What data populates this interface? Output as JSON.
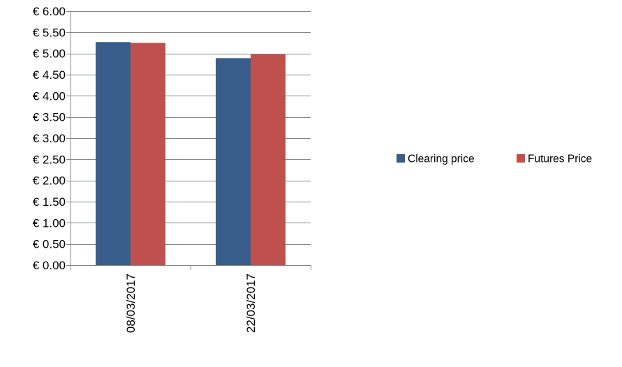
{
  "chart_data": {
    "type": "bar",
    "categories": [
      "08/03/2017",
      "22/03/2017"
    ],
    "series": [
      {
        "name": "Clearing price",
        "values": [
          5.27,
          4.89
        ],
        "color": "#385D8A"
      },
      {
        "name": "Futures Price",
        "values": [
          5.25,
          4.98
        ],
        "color": "#C0504D"
      }
    ],
    "ylim": [
      0,
      6
    ],
    "y_ticks": [
      0,
      0.5,
      1,
      1.5,
      2,
      2.5,
      3,
      3.5,
      4,
      4.5,
      5,
      5.5,
      6
    ],
    "y_tick_labels": [
      "€ 0.00",
      "€ 0.50",
      "€ 1.00",
      "€ 1.50",
      "€ 2.00",
      "€ 2.50",
      "€ 3.00",
      "€ 3.50",
      "€ 4.00",
      "€ 4.50",
      "€ 5.00",
      "€ 5.50",
      "€ 6.00"
    ],
    "grid": true,
    "legend_position": "right",
    "x_tick_rotation": "vertical"
  }
}
